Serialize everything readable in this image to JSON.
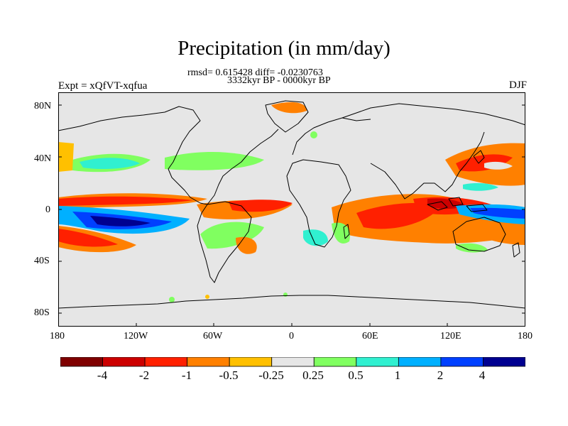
{
  "title": "Precipitation (in mm/day)",
  "stats_line": "rmsd= 0.615428 diff= -0.0230763",
  "period_line": "3332kyr BP - 0000kyr BP",
  "experiment_label": "Expt = xQfVT-xqfua",
  "season_label": "DJF",
  "lat_ticks": [
    "80N",
    "40N",
    "0",
    "40S",
    "80S"
  ],
  "lon_ticks": [
    "180",
    "120W",
    "60W",
    "0",
    "60E",
    "120E",
    "180"
  ],
  "colorbar": {
    "labels": [
      "-4",
      "-2",
      "-1",
      "-0.5",
      "-0.25",
      "0.25",
      "0.5",
      "1",
      "2",
      "4"
    ],
    "colors": [
      "#7f0000",
      "#cc0000",
      "#ff2000",
      "#ff8000",
      "#ffc000",
      "#e6e6e6",
      "#80ff60",
      "#30f0d0",
      "#00b0ff",
      "#0040ff",
      "#000090"
    ]
  },
  "colors": {
    "ocean_land_background": "#e6e6e6",
    "coastline": "#000000"
  }
}
